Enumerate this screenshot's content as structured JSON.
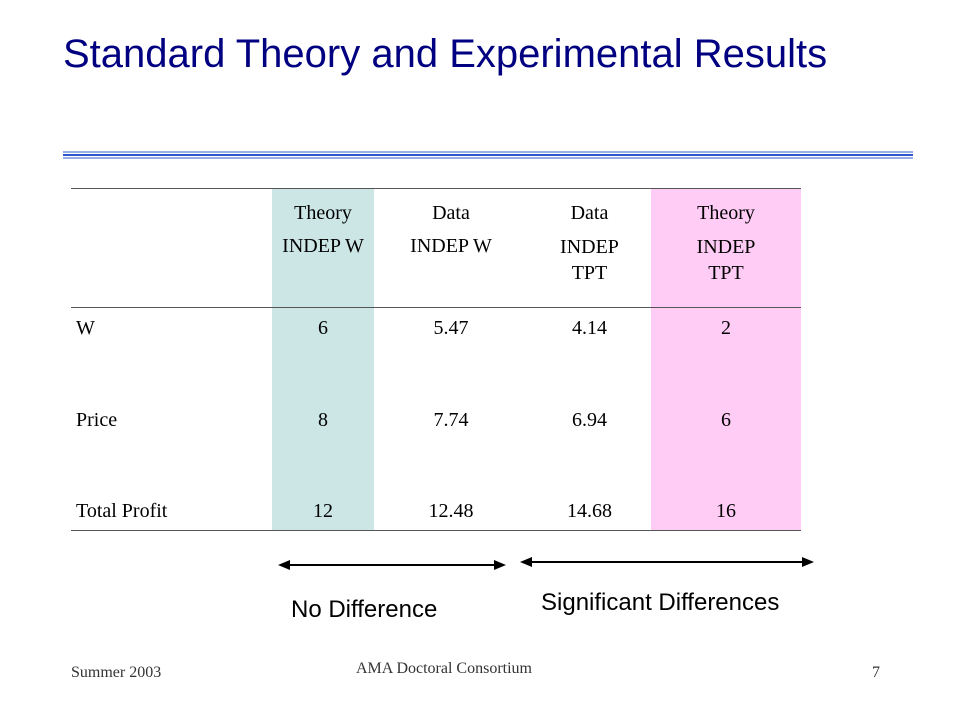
{
  "slide": {
    "title": "Standard Theory and Experimental Results",
    "table": {
      "columns": [
        {
          "line1": "Theory",
          "line2": "INDEP W"
        },
        {
          "line1": "Data",
          "line2": "INDEP W"
        },
        {
          "line1": "Data",
          "line2": "INDEP",
          "line3": "TPT"
        },
        {
          "line1": "Theory",
          "line2": "INDEP",
          "line3": "TPT"
        }
      ],
      "rows": [
        {
          "label": "W",
          "values": [
            "6",
            "5.47",
            "4.14",
            "2"
          ]
        },
        {
          "label": "Price",
          "values": [
            "8",
            "7.74",
            "6.94",
            "6"
          ]
        },
        {
          "label": "Total Profit",
          "values": [
            "12",
            "12.48",
            "14.68",
            "16"
          ]
        }
      ]
    },
    "annotations": {
      "left": "No Difference",
      "right": "Significant Differences"
    },
    "footer": {
      "left": "Summer 2003",
      "center": "AMA Doctoral Consortium",
      "page_number": "7"
    },
    "colors": {
      "title": "#000080",
      "theory_w_column": "#cce6e6",
      "theory_tpt_column": "#ffccf5"
    }
  }
}
